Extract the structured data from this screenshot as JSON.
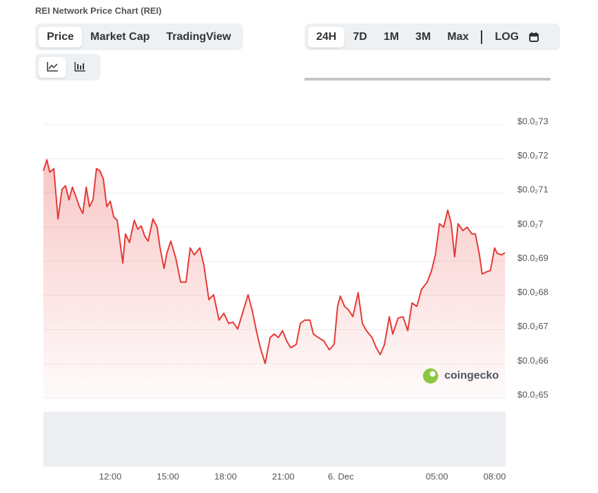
{
  "header": {
    "title": "REI Network Price Chart (REI)"
  },
  "view_tabs": [
    "Price",
    "Market Cap",
    "TradingView"
  ],
  "range_tabs": [
    "24H",
    "7D",
    "1M",
    "3M",
    "Max",
    "LOG"
  ],
  "watermark": "coingecko",
  "chart_data": {
    "type": "area",
    "color": "#e53935",
    "grid": true,
    "x": [
      8.52,
      8.7,
      8.85,
      9.06,
      9.28,
      9.49,
      9.67,
      9.85,
      10.03,
      10.21,
      10.39,
      10.57,
      10.75,
      10.92,
      11.1,
      11.28,
      11.46,
      11.64,
      11.82,
      12.0,
      12.18,
      12.36,
      12.65,
      12.79,
      13.0,
      13.25,
      13.43,
      13.61,
      13.79,
      13.97,
      14.22,
      14.44,
      14.58,
      14.8,
      14.94,
      15.15,
      15.41,
      15.66,
      15.94,
      16.16,
      16.37,
      16.66,
      16.87,
      17.13,
      17.38,
      17.66,
      17.91,
      18.16,
      18.38,
      18.63,
      18.88,
      19.17,
      19.38,
      19.6,
      19.81,
      20.06,
      20.32,
      20.53,
      20.75,
      20.96,
      21.18,
      21.39,
      21.68,
      21.89,
      22.11,
      22.39,
      22.57,
      22.82,
      23.11,
      23.4,
      23.65,
      23.83,
      23.97,
      24.19,
      24.4,
      24.62,
      24.9,
      25.12,
      25.33,
      25.62,
      25.84,
      26.05,
      26.27,
      26.52,
      26.7,
      26.98,
      27.23,
      27.48,
      27.7,
      27.95,
      28.2,
      28.49,
      28.7,
      28.92,
      29.13,
      29.35,
      29.56,
      29.74,
      29.92,
      30.1,
      30.35,
      30.57,
      30.82,
      31.0,
      31.21,
      31.35,
      31.57,
      31.78,
      32.0,
      32.14,
      32.36,
      32.54
    ],
    "series": [
      {
        "name": "Price",
        "color": "#e53935",
        "values": [
          0.007165,
          0.007197,
          0.007161,
          0.007171,
          0.007024,
          0.007111,
          0.007121,
          0.00708,
          0.007117,
          0.00709,
          0.00706,
          0.00704,
          0.007117,
          0.00706,
          0.00708,
          0.007171,
          0.007165,
          0.007141,
          0.00706,
          0.007076,
          0.00703,
          0.00702,
          0.006895,
          0.00698,
          0.006955,
          0.00702,
          0.006994,
          0.007004,
          0.006974,
          0.006959,
          0.007024,
          0.007,
          0.006943,
          0.006879,
          0.006923,
          0.006959,
          0.006909,
          0.006839,
          0.006839,
          0.006939,
          0.006919,
          0.006939,
          0.006889,
          0.006788,
          0.006802,
          0.006728,
          0.006748,
          0.006718,
          0.006722,
          0.006702,
          0.006748,
          0.006802,
          0.006758,
          0.006697,
          0.006647,
          0.006601,
          0.006677,
          0.006687,
          0.006677,
          0.006697,
          0.006667,
          0.006647,
          0.006657,
          0.006718,
          0.006728,
          0.006728,
          0.006687,
          0.006677,
          0.006667,
          0.006641,
          0.006657,
          0.006768,
          0.006798,
          0.006768,
          0.006758,
          0.006738,
          0.006808,
          0.006718,
          0.006697,
          0.006677,
          0.006647,
          0.006627,
          0.006657,
          0.006738,
          0.006687,
          0.006734,
          0.006738,
          0.006697,
          0.006778,
          0.006768,
          0.006818,
          0.006839,
          0.006869,
          0.006919,
          0.00701,
          0.007,
          0.00705,
          0.00701,
          0.006913,
          0.00701,
          0.00699,
          0.007,
          0.00698,
          0.00698,
          0.006919,
          0.006863,
          0.006869,
          0.006873,
          0.006939,
          0.006923,
          0.006919,
          0.006925
        ]
      }
    ],
    "xlim": [
      8.52,
      32.54
    ],
    "xticks": [
      {
        "value": 12,
        "label": "12:00"
      },
      {
        "value": 15,
        "label": "15:00"
      },
      {
        "value": 18,
        "label": "18:00"
      },
      {
        "value": 21,
        "label": "21:00"
      },
      {
        "value": 24,
        "label": "6. Dec"
      },
      {
        "value": 29,
        "label": "05:00"
      },
      {
        "value": 32,
        "label": "08:00"
      }
    ],
    "ylim": [
      0.0065,
      0.0073
    ],
    "yticks": [
      {
        "value": 0.0065,
        "label": "$0.0₂65"
      },
      {
        "value": 0.0066,
        "label": "$0.0₂66"
      },
      {
        "value": 0.0067,
        "label": "$0.0₂67"
      },
      {
        "value": 0.0068,
        "label": "$0.0₂68"
      },
      {
        "value": 0.0069,
        "label": "$0.0₂69"
      },
      {
        "value": 0.007,
        "label": "$0.0₂7"
      },
      {
        "value": 0.0071,
        "label": "$0.0₂71"
      },
      {
        "value": 0.0072,
        "label": "$0.0₂72"
      },
      {
        "value": 0.0073,
        "label": "$0.0₂73"
      }
    ]
  }
}
